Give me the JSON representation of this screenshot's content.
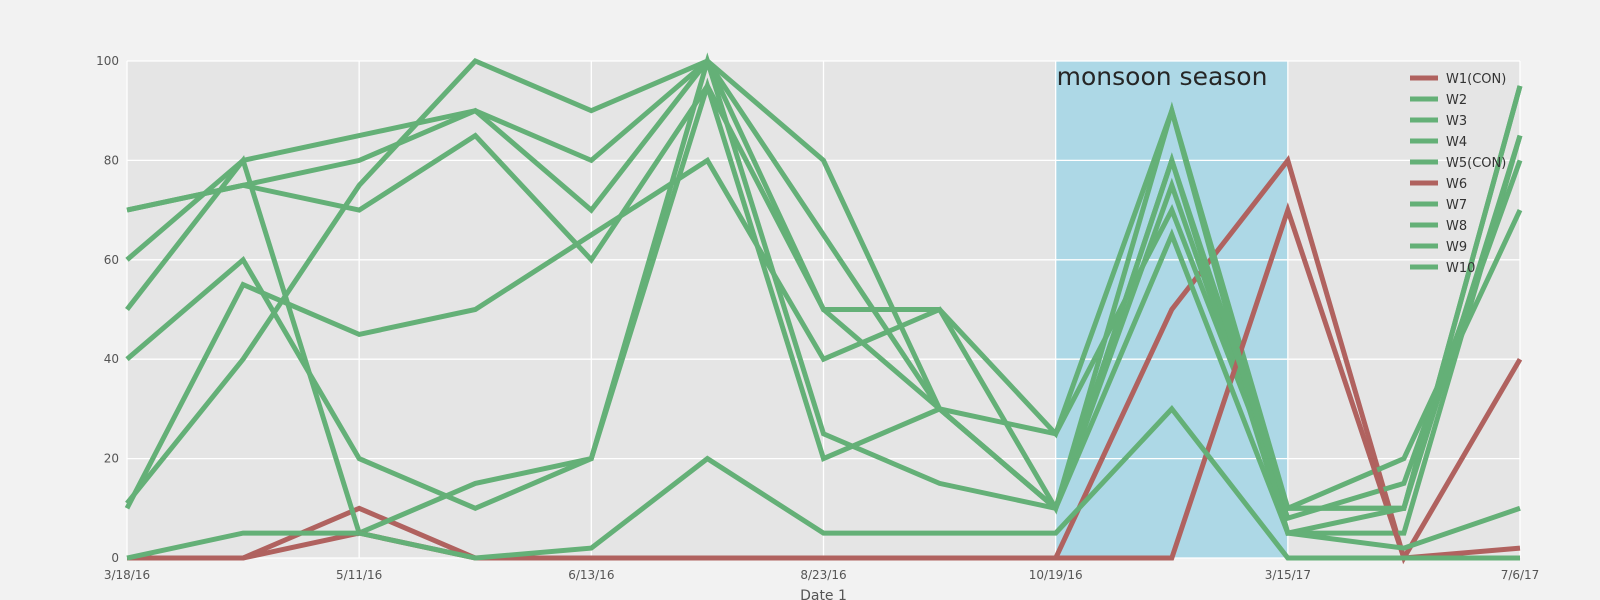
{
  "chart_data": {
    "type": "line",
    "title": "",
    "xlabel": "Date 1",
    "ylabel": "",
    "ylim": [
      0,
      100
    ],
    "y_ticks": [
      0,
      20,
      40,
      60,
      80,
      100
    ],
    "x_tick_labels": [
      "3/18/16",
      "5/11/16",
      "6/13/16",
      "8/23/16",
      "10/19/16",
      "3/15/17",
      "7/6/17"
    ],
    "x_tick_positions": [
      0,
      2,
      4,
      6,
      8,
      10,
      12
    ],
    "x_positions": [
      0,
      1,
      2,
      3,
      4,
      5,
      6,
      7,
      8,
      9,
      10,
      11,
      12
    ],
    "grid": true,
    "legend_position": "top-right",
    "colors": {
      "con": "#b0625f",
      "normal": "#64b077",
      "shade": "#add8e6",
      "plot_bg": "#e5e5e5",
      "grid": "#ffffff"
    },
    "shaded_region": {
      "x_start": 8,
      "x_end": 10,
      "label": "monsoon season"
    },
    "series": [
      {
        "name": "W1(CON)",
        "color_key": "con",
        "values": [
          0,
          0,
          10,
          0,
          0,
          0,
          0,
          0,
          0,
          50,
          80,
          0,
          40
        ]
      },
      {
        "name": "W2",
        "color_key": "normal",
        "values": [
          70,
          75,
          70,
          85,
          60,
          95,
          50,
          50,
          25,
          90,
          10,
          10,
          95
        ]
      },
      {
        "name": "W3",
        "color_key": "normal",
        "values": [
          60,
          80,
          85,
          90,
          80,
          100,
          50,
          30,
          10,
          80,
          5,
          5,
          85
        ]
      },
      {
        "name": "W4",
        "color_key": "normal",
        "values": [
          50,
          80,
          5,
          15,
          20,
          100,
          25,
          15,
          10,
          75,
          8,
          15,
          80
        ]
      },
      {
        "name": "W5(CON)",
        "color_key": "normal",
        "values": [
          40,
          60,
          20,
          10,
          20,
          95,
          20,
          30,
          25,
          70,
          10,
          20,
          70
        ]
      },
      {
        "name": "W6",
        "color_key": "con",
        "values": [
          0,
          0,
          5,
          0,
          0,
          0,
          0,
          0,
          0,
          0,
          70,
          0,
          2
        ]
      },
      {
        "name": "W7",
        "color_key": "normal",
        "values": [
          70,
          75,
          80,
          90,
          70,
          100,
          80,
          30,
          10,
          65,
          5,
          10,
          85
        ]
      },
      {
        "name": "W8",
        "color_key": "normal",
        "values": [
          10,
          55,
          45,
          50,
          65,
          80,
          40,
          50,
          10,
          90,
          5,
          2,
          10
        ]
      },
      {
        "name": "W9",
        "color_key": "normal",
        "values": [
          11,
          40,
          75,
          100,
          90,
          100,
          65,
          30,
          10,
          80,
          10,
          10,
          95
        ]
      },
      {
        "name": "W10",
        "color_key": "normal",
        "values": [
          0,
          5,
          5,
          0,
          2,
          20,
          5,
          5,
          5,
          30,
          0,
          0,
          0
        ]
      }
    ]
  }
}
